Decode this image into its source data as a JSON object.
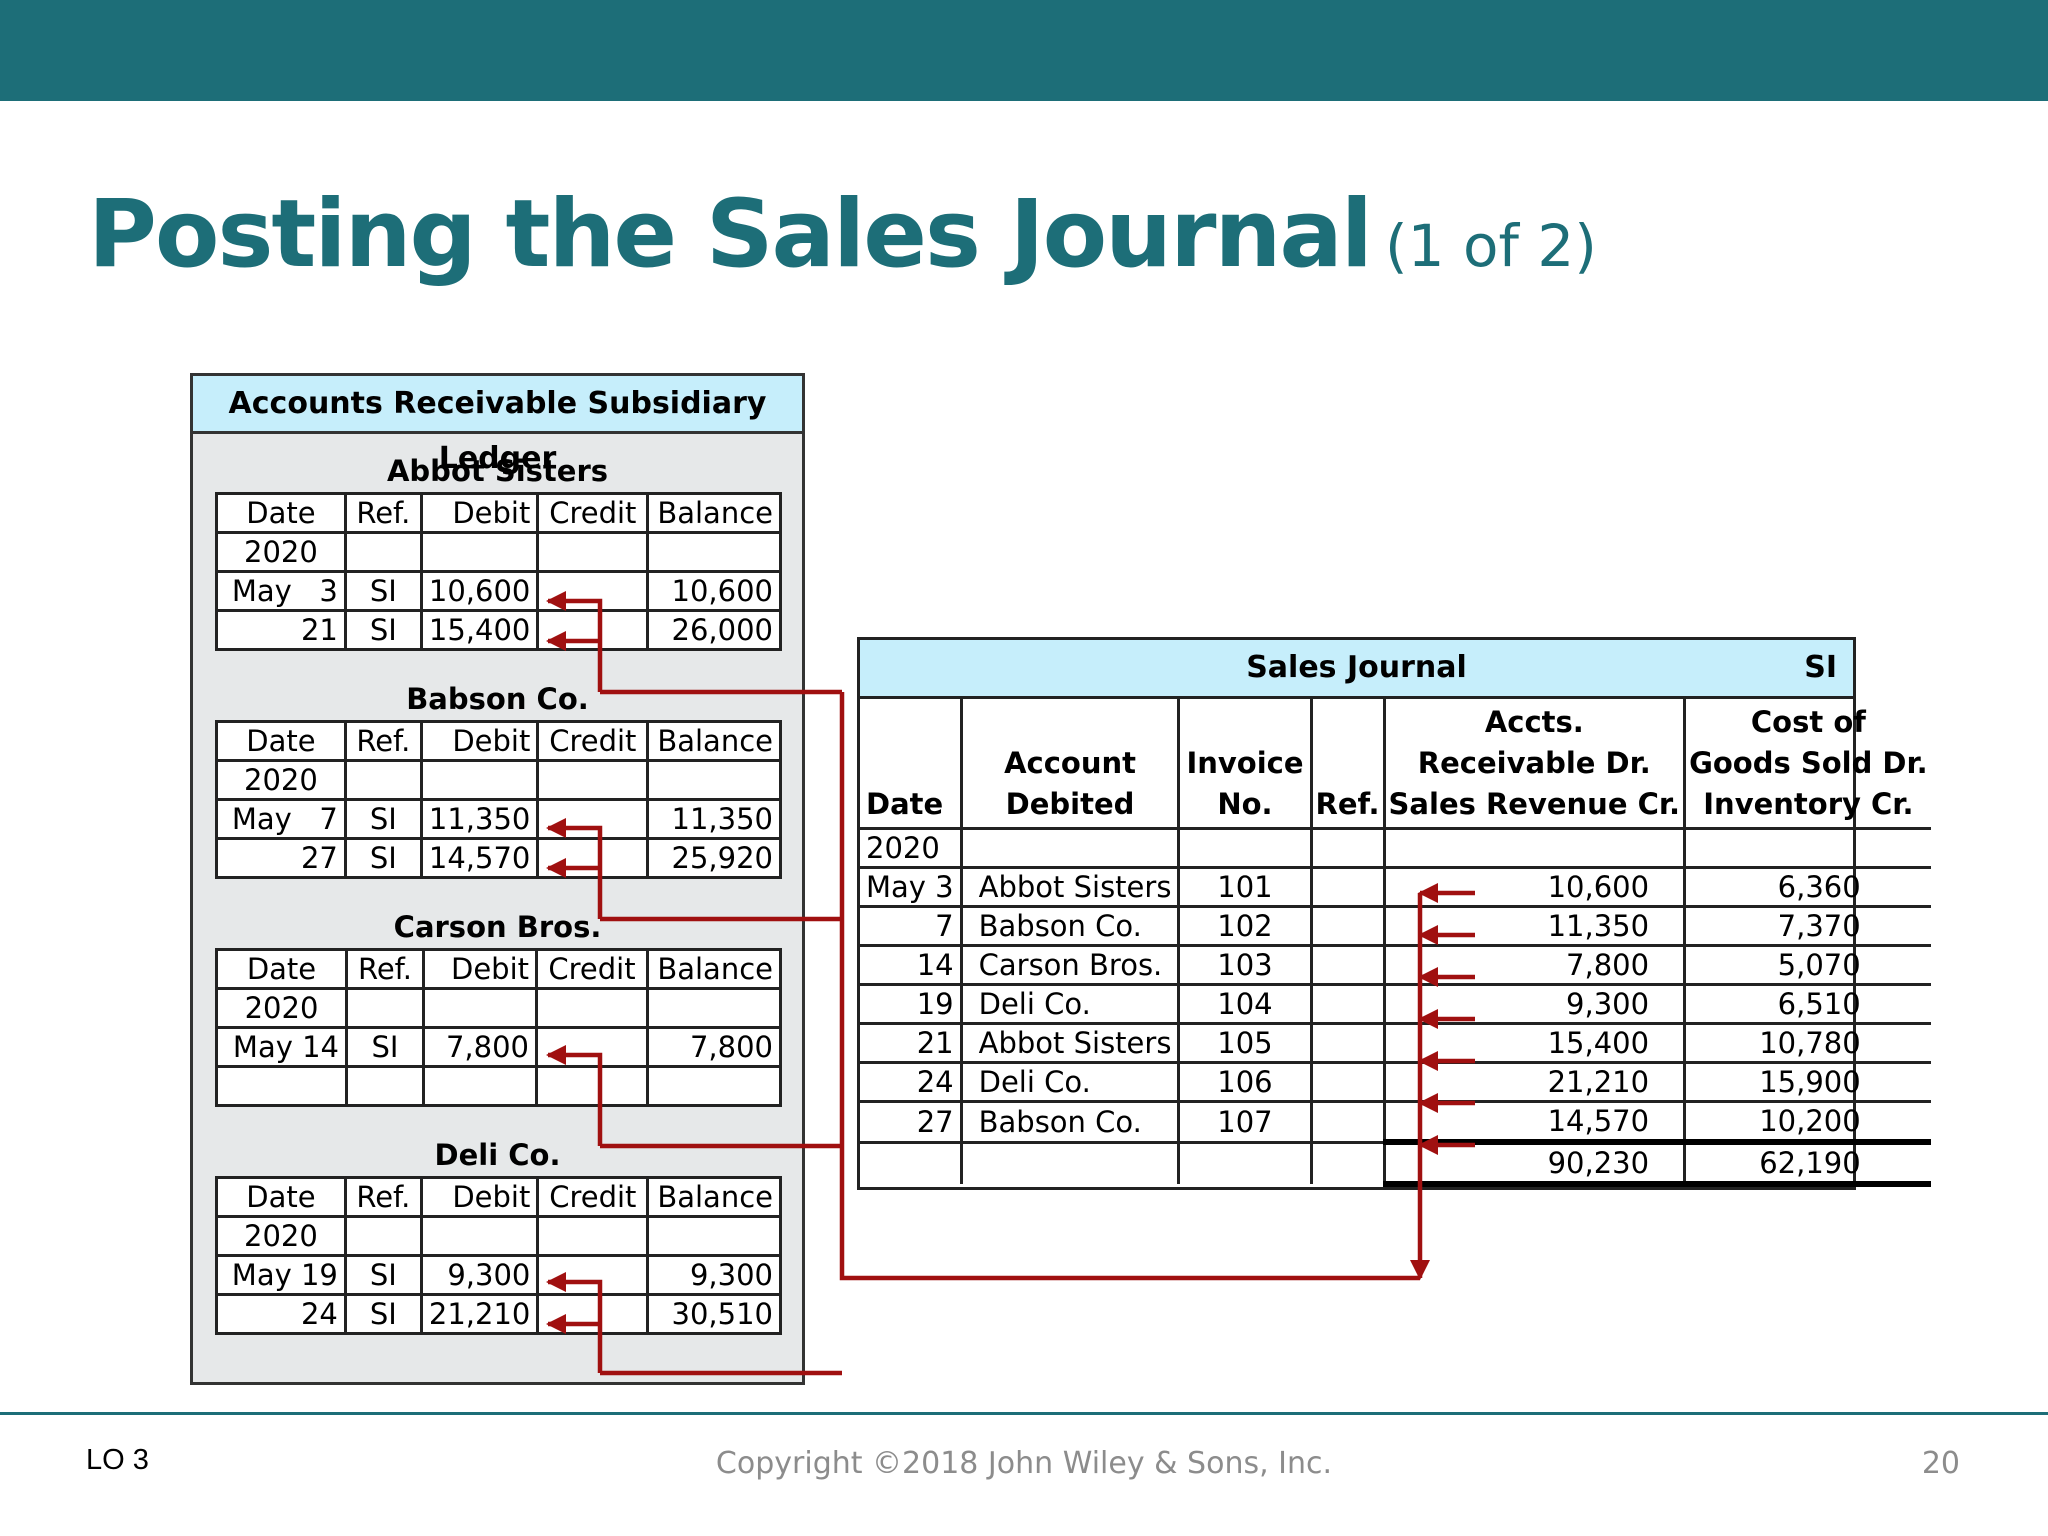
{
  "slide": {
    "title": "Posting the Sales Journal",
    "title_suffix": "(1 of 2)",
    "lo": "LO 3",
    "copyright": "Copyright ©2018 John Wiley & Sons, Inc.",
    "page": "20"
  },
  "ledger": {
    "title": "Accounts Receivable Subsidiary Ledger",
    "headers": [
      "Date",
      "Ref.",
      "Debit",
      "Credit",
      "Balance"
    ],
    "year": "2020",
    "accounts": [
      {
        "name": "Abbot Sisters",
        "rows": [
          {
            "date": "May   3",
            "ref": "SI",
            "debit": "10,600",
            "credit": "",
            "balance": "10,600"
          },
          {
            "date": "21",
            "ref": "SI",
            "debit": "15,400",
            "credit": "",
            "balance": "26,000"
          }
        ]
      },
      {
        "name": "Babson Co.",
        "rows": [
          {
            "date": "May   7",
            "ref": "SI",
            "debit": "11,350",
            "credit": "",
            "balance": "11,350"
          },
          {
            "date": "27",
            "ref": "SI",
            "debit": "14,570",
            "credit": "",
            "balance": "25,920"
          }
        ]
      },
      {
        "name": "Carson Bros.",
        "rows": [
          {
            "date": "May 14",
            "ref": "SI",
            "debit": "7,800",
            "credit": "",
            "balance": "7,800"
          },
          {
            "date": "",
            "ref": "",
            "debit": "",
            "credit": "",
            "balance": ""
          }
        ]
      },
      {
        "name": "Deli Co.",
        "rows": [
          {
            "date": "May 19",
            "ref": "SI",
            "debit": "9,300",
            "credit": "",
            "balance": "9,300"
          },
          {
            "date": "24",
            "ref": "SI",
            "debit": "21,210",
            "credit": "",
            "balance": "30,510"
          }
        ]
      }
    ]
  },
  "journal": {
    "title": "Sales Journal",
    "code": "SI",
    "headers": {
      "date": "Date",
      "account": [
        "Account",
        "Debited"
      ],
      "invoice": [
        "Invoice",
        "No."
      ],
      "ref": "Ref.",
      "ar": [
        "Accts.",
        "Receivable Dr.",
        "Sales Revenue Cr."
      ],
      "cogs": [
        "Cost of",
        "Goods Sold Dr.",
        "Inventory Cr."
      ]
    },
    "year": "2020",
    "rows": [
      {
        "date": "May 3",
        "account": "Abbot Sisters",
        "invoice": "101",
        "ref": "",
        "ar": "10,600",
        "cogs": "6,360"
      },
      {
        "date": "7",
        "account": "Babson Co.",
        "invoice": "102",
        "ref": "",
        "ar": "11,350",
        "cogs": "7,370"
      },
      {
        "date": "14",
        "account": "Carson Bros.",
        "invoice": "103",
        "ref": "",
        "ar": "7,800",
        "cogs": "5,070"
      },
      {
        "date": "19",
        "account": "Deli Co.",
        "invoice": "104",
        "ref": "",
        "ar": "9,300",
        "cogs": "6,510"
      },
      {
        "date": "21",
        "account": "Abbot Sisters",
        "invoice": "105",
        "ref": "",
        "ar": "15,400",
        "cogs": "10,780"
      },
      {
        "date": "24",
        "account": "Deli Co.",
        "invoice": "106",
        "ref": "",
        "ar": "21,210",
        "cogs": "15,900"
      },
      {
        "date": "27",
        "account": "Babson Co.",
        "invoice": "107",
        "ref": "",
        "ar": "14,570",
        "cogs": "10,200"
      }
    ],
    "totals": {
      "ar": "90,230",
      "cogs": "62,190"
    }
  },
  "colors": {
    "brand": "#1d6e78",
    "header_fill": "#c6eefb",
    "arrow": "#a01010"
  }
}
